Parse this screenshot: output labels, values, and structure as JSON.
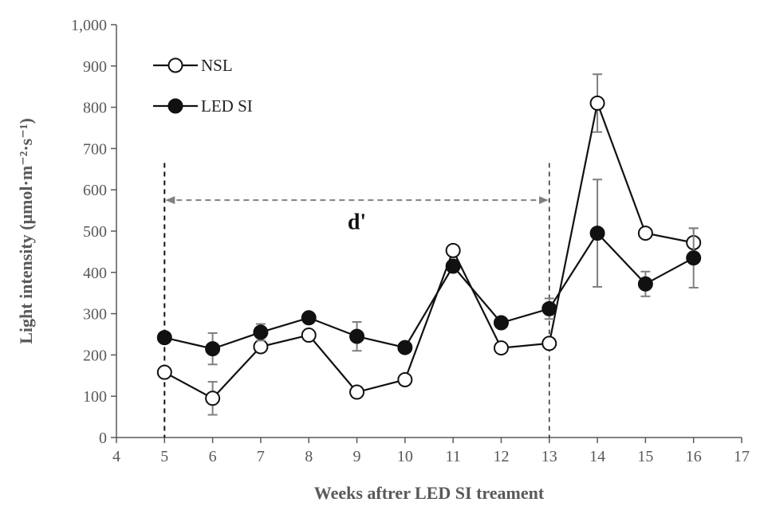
{
  "chart_data": {
    "type": "line",
    "ylabel": "Light intensity (μmol·m⁻²·s⁻¹)",
    "xlabel": "Weeks aftrer LED SI treament",
    "xlim": [
      4,
      17
    ],
    "ylim": [
      0,
      1000
    ],
    "x_ticks": [
      4,
      5,
      6,
      7,
      8,
      9,
      10,
      11,
      12,
      13,
      14,
      15,
      16,
      17
    ],
    "y_ticks": [
      0,
      100,
      200,
      300,
      400,
      500,
      600,
      700,
      800,
      900,
      1000
    ],
    "y_tick_labels": [
      "0",
      "100",
      "200",
      "300",
      "400",
      "500",
      "600",
      "700",
      "800",
      "900",
      "1,000"
    ],
    "grid": false,
    "legend_position": "top-left",
    "x": [
      5,
      6,
      7,
      8,
      9,
      10,
      11,
      12,
      13,
      14,
      15,
      16
    ],
    "series": [
      {
        "name": "NSL",
        "marker": "open-circle",
        "values": [
          158,
          95,
          220,
          248,
          110,
          140,
          453,
          217,
          228,
          810,
          495,
          472
        ],
        "error": [
          0,
          40,
          0,
          0,
          0,
          0,
          0,
          0,
          0,
          70,
          0,
          35
        ]
      },
      {
        "name": "LED SI",
        "marker": "filled-circle",
        "values": [
          242,
          215,
          255,
          290,
          245,
          218,
          415,
          278,
          312,
          495,
          372,
          435
        ],
        "error": [
          0,
          38,
          20,
          0,
          35,
          0,
          0,
          0,
          25,
          130,
          30,
          72
        ]
      }
    ],
    "annotations": [
      {
        "type": "vline",
        "x": 5,
        "style": "dashed"
      },
      {
        "type": "vline",
        "x": 13,
        "style": "dashed"
      },
      {
        "type": "double-arrow",
        "x_start": 5,
        "x_end": 13,
        "y": 575,
        "style": "dashed-gray"
      },
      {
        "type": "text",
        "text": "d'",
        "x": 9,
        "y": 505
      }
    ]
  }
}
